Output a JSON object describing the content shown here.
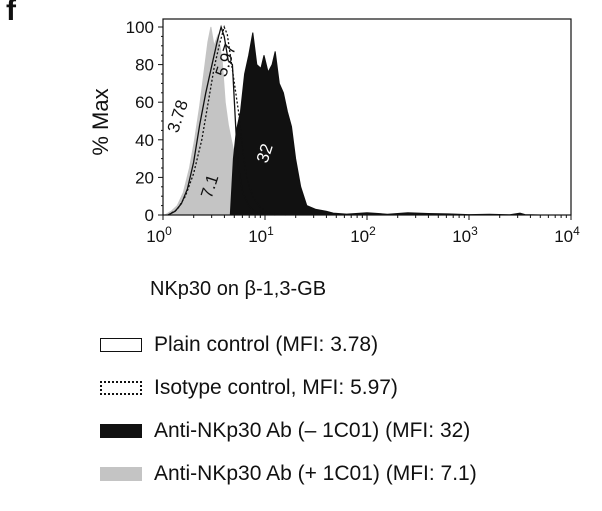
{
  "panel_label": "f",
  "chart_data": {
    "type": "area",
    "title": "",
    "xlabel": "NKp30 on β-1,3-GB",
    "ylabel": "% Max",
    "xscale": "log",
    "xlim": [
      1,
      10000
    ],
    "ylim": [
      0,
      100
    ],
    "x_ticks": [
      {
        "base": "10",
        "exp": "0"
      },
      {
        "base": "10",
        "exp": "1"
      },
      {
        "base": "10",
        "exp": "2"
      },
      {
        "base": "10",
        "exp": "3"
      },
      {
        "base": "10",
        "exp": "4"
      }
    ],
    "y_ticks": [
      "0",
      "20",
      "40",
      "60",
      "80",
      "100"
    ],
    "series": [
      {
        "name": "Anti-NKp30 Ab (– 1C01)",
        "mfi_label": "32",
        "style": "filled",
        "color": "#111111",
        "log10x": [
          0.66,
          0.69,
          0.72,
          0.76,
          0.8,
          0.84,
          0.88,
          0.92,
          0.96,
          0.99,
          1.03,
          1.07,
          1.1,
          1.14,
          1.18,
          1.22,
          1.26,
          1.3,
          1.35,
          1.41,
          1.5,
          1.6,
          1.67,
          1.8,
          2.0,
          2.2,
          2.4,
          2.6,
          2.8,
          3.0,
          3.2,
          3.4,
          3.5,
          3.55,
          3.7
        ],
        "y": [
          0,
          30,
          45,
          55,
          75,
          85,
          97,
          80,
          78,
          85,
          76,
          80,
          87,
          70,
          65,
          55,
          47,
          30,
          15,
          5,
          3,
          2,
          1,
          0.5,
          1.2,
          0.4,
          1.2,
          0.8,
          0.6,
          0.2,
          0.4,
          0.1,
          1,
          0.2,
          0
        ]
      },
      {
        "name": "Anti-NKp30 Ab (+ 1C01)",
        "mfi_label": "7.1",
        "style": "filled",
        "color": "#c4c4c4",
        "log10x": [
          0.02,
          0.08,
          0.14,
          0.2,
          0.26,
          0.31,
          0.36,
          0.4,
          0.44,
          0.47,
          0.5,
          0.54,
          0.58,
          0.61,
          0.64,
          0.67,
          0.72,
          0.78,
          0.84,
          0.9,
          0.97,
          1.05
        ],
        "y": [
          0,
          2,
          5,
          12,
          25,
          40,
          58,
          75,
          92,
          100,
          90,
          96,
          82,
          60,
          48,
          40,
          28,
          15,
          7,
          3,
          1,
          0
        ]
      },
      {
        "name": "Plain control",
        "mfi_label": "3.78",
        "style": "solid-outline",
        "color": "#111111",
        "log10x": [
          0.05,
          0.12,
          0.18,
          0.24,
          0.3,
          0.36,
          0.42,
          0.48,
          0.53,
          0.57,
          0.6,
          0.64,
          0.68,
          0.7,
          0.72,
          0.74,
          0.78,
          0.84,
          0.9,
          0.98,
          1.1
        ],
        "y": [
          0,
          2,
          6,
          14,
          28,
          48,
          65,
          80,
          92,
          100,
          95,
          82,
          80,
          60,
          40,
          25,
          12,
          5,
          2,
          1,
          0
        ]
      },
      {
        "name": "Isotype control",
        "mfi_label": "5.97",
        "style": "dotted-outline",
        "color": "#111111",
        "log10x": [
          0.05,
          0.14,
          0.22,
          0.3,
          0.38,
          0.45,
          0.5,
          0.55,
          0.6,
          0.63,
          0.66,
          0.7,
          0.74,
          0.78,
          0.82,
          0.88,
          0.95,
          1.05,
          1.2
        ],
        "y": [
          0,
          3,
          10,
          22,
          40,
          62,
          78,
          90,
          100,
          96,
          85,
          70,
          55,
          35,
          20,
          10,
          4,
          1,
          0
        ]
      }
    ],
    "legend_placement": "below"
  },
  "legend": [
    {
      "label": "Plain control (MFI: 3.78)",
      "swatch": "outline"
    },
    {
      "label": "Isotype control, MFI: 5.97)",
      "swatch": "dotted"
    },
    {
      "label": "Anti-NKp30 Ab (– 1C01)  (MFI: 32)",
      "swatch": "black"
    },
    {
      "label": "Anti-NKp30 Ab (+ 1C01) (MFI: 7.1)",
      "swatch": "gray"
    }
  ]
}
